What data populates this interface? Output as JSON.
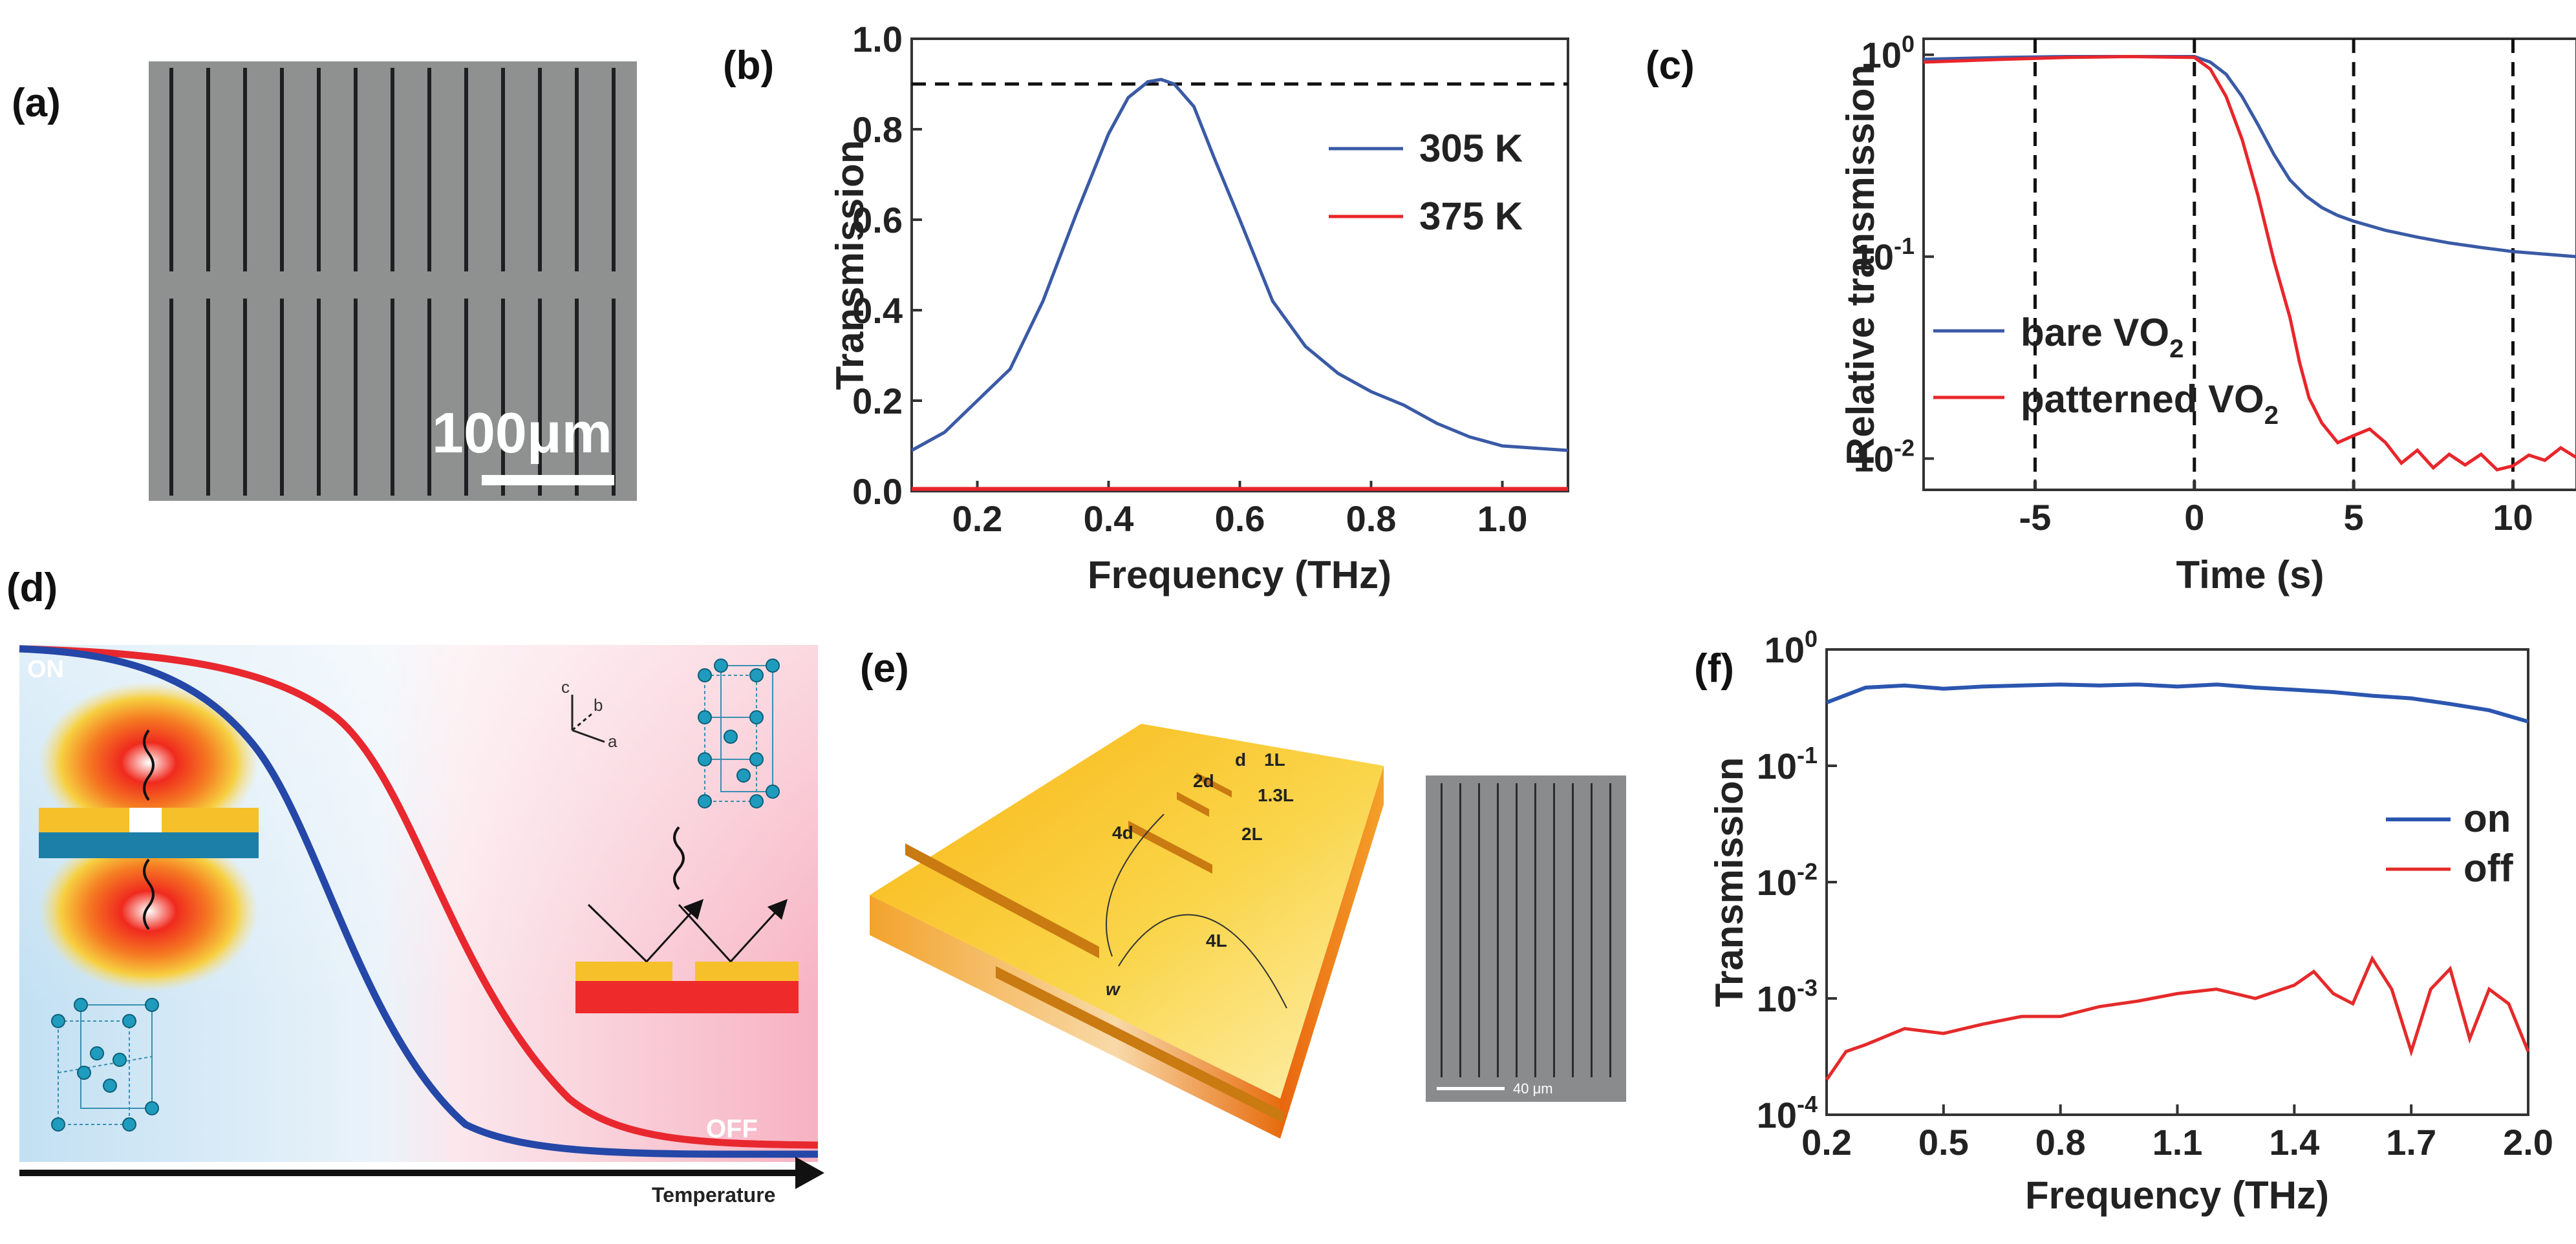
{
  "panel_labels": [
    "(a)",
    "(b)",
    "(c)",
    "(d)",
    "(e)",
    "(f)"
  ],
  "panel_a": {
    "scale_bar": "100μm",
    "colors": {
      "background": "#8f9090",
      "slit": "#1e1f20"
    }
  },
  "chart_data": [
    {
      "id": "b",
      "type": "line",
      "title": "",
      "xlabel": "Frequency (THz)",
      "ylabel": "Transmission",
      "xlim": [
        0.1,
        1.1
      ],
      "ylim": [
        0.0,
        1.0
      ],
      "xticks": [
        0.2,
        0.4,
        0.6,
        0.8,
        1.0
      ],
      "yticks": [
        0.0,
        0.2,
        0.4,
        0.6,
        0.8,
        1.0
      ],
      "tick_labels_x": [
        "0.2",
        "0.4",
        "0.6",
        "0.8",
        "1.0"
      ],
      "tick_labels_y": [
        "0.0",
        "0.2",
        "0.4",
        "0.6",
        "0.8",
        "1.0"
      ],
      "reference_line": {
        "y": 0.9,
        "style": "dashed"
      },
      "legend_position": "right",
      "series": [
        {
          "name": "305 K",
          "color": "#3a5aa6",
          "x": [
            0.1,
            0.15,
            0.2,
            0.25,
            0.3,
            0.35,
            0.4,
            0.43,
            0.46,
            0.48,
            0.5,
            0.53,
            0.56,
            0.6,
            0.65,
            0.7,
            0.75,
            0.8,
            0.85,
            0.9,
            0.95,
            1.0,
            1.05,
            1.1
          ],
          "y": [
            0.09,
            0.13,
            0.2,
            0.27,
            0.42,
            0.61,
            0.79,
            0.87,
            0.905,
            0.91,
            0.9,
            0.85,
            0.74,
            0.6,
            0.42,
            0.32,
            0.26,
            0.22,
            0.19,
            0.15,
            0.12,
            0.1,
            0.095,
            0.09
          ]
        },
        {
          "name": "375 K",
          "color": "#e8262b",
          "x": [
            0.1,
            0.6,
            1.1
          ],
          "y": [
            0.005,
            0.005,
            0.005
          ]
        }
      ]
    },
    {
      "id": "c",
      "type": "line",
      "title": "",
      "xlabel": "Time (s)",
      "ylabel": "Relative transmission",
      "xlim": [
        -8.5,
        12
      ],
      "ylim": [
        0.007,
        1.2
      ],
      "yscale": "log",
      "xticks": [
        -5,
        0,
        5,
        10
      ],
      "tick_labels_x": [
        "-5",
        "0",
        "5",
        "10"
      ],
      "yticks": [
        0.01,
        0.1,
        1
      ],
      "tick_labels_y": [
        {
          "base": "10",
          "exp": "-2"
        },
        {
          "base": "10",
          "exp": "-1"
        },
        {
          "base": "10",
          "exp": "0"
        }
      ],
      "vertical_dashed_lines": [
        -5,
        0,
        5,
        10
      ],
      "legend_position": "bottom-left",
      "series": [
        {
          "name": "bare VO",
          "subscript": "2",
          "color": "#3a5aa6",
          "x": [
            -8.5,
            -6,
            -4,
            -2,
            0,
            0.5,
            1,
            1.5,
            2,
            2.5,
            3,
            3.5,
            4,
            4.5,
            5,
            6,
            7,
            8,
            9,
            10,
            11,
            12
          ],
          "y": [
            0.95,
            0.97,
            0.98,
            0.98,
            0.98,
            0.92,
            0.8,
            0.62,
            0.45,
            0.32,
            0.24,
            0.2,
            0.175,
            0.16,
            0.15,
            0.135,
            0.125,
            0.117,
            0.111,
            0.106,
            0.103,
            0.1
          ]
        },
        {
          "name": "patterned VO",
          "subscript": "2",
          "color": "#e8262b",
          "x": [
            -8.5,
            -6,
            -4,
            -2,
            0,
            0.5,
            1,
            1.5,
            2,
            2.5,
            3,
            3.3,
            3.6,
            4,
            4.5,
            5,
            5.5,
            6,
            6.5,
            7,
            7.5,
            8,
            8.5,
            9,
            9.5,
            10,
            10.5,
            11,
            11.5,
            12
          ],
          "y": [
            0.92,
            0.95,
            0.97,
            0.98,
            0.97,
            0.85,
            0.62,
            0.38,
            0.2,
            0.095,
            0.05,
            0.03,
            0.02,
            0.015,
            0.012,
            0.013,
            0.014,
            0.012,
            0.0095,
            0.011,
            0.009,
            0.0105,
            0.0093,
            0.0105,
            0.0088,
            0.0092,
            0.0104,
            0.0098,
            0.0113,
            0.0101
          ]
        }
      ]
    },
    {
      "id": "f",
      "type": "line",
      "title": "",
      "xlabel": "Frequency (THz)",
      "ylabel": "Transmission",
      "xlim": [
        0.2,
        2.0
      ],
      "ylim": [
        0.0001,
        1
      ],
      "yscale": "log",
      "xticks": [
        0.2,
        0.5,
        0.8,
        1.1,
        1.4,
        1.7,
        2.0
      ],
      "tick_labels_x": [
        "0.2",
        "0.5",
        "0.8",
        "1.1",
        "1.4",
        "1.7",
        "2.0"
      ],
      "yticks": [
        0.0001,
        0.001,
        0.01,
        0.1,
        1
      ],
      "tick_labels_y": [
        {
          "base": "10",
          "exp": "-4"
        },
        {
          "base": "10",
          "exp": "-3"
        },
        {
          "base": "10",
          "exp": "-2"
        },
        {
          "base": "10",
          "exp": "-1"
        },
        {
          "base": "10",
          "exp": "0"
        }
      ],
      "legend_position": "right",
      "series": [
        {
          "name": "on",
          "color": "#2b56b0",
          "x": [
            0.2,
            0.3,
            0.4,
            0.5,
            0.6,
            0.7,
            0.8,
            0.9,
            1.0,
            1.1,
            1.2,
            1.3,
            1.4,
            1.5,
            1.6,
            1.7,
            1.8,
            1.9,
            2.0
          ],
          "y": [
            0.35,
            0.47,
            0.49,
            0.46,
            0.48,
            0.49,
            0.5,
            0.49,
            0.5,
            0.48,
            0.5,
            0.47,
            0.45,
            0.43,
            0.4,
            0.38,
            0.34,
            0.3,
            0.24
          ]
        },
        {
          "name": "off",
          "color": "#e52a2a",
          "x": [
            0.2,
            0.25,
            0.3,
            0.4,
            0.5,
            0.6,
            0.7,
            0.8,
            0.9,
            1.0,
            1.1,
            1.2,
            1.3,
            1.4,
            1.45,
            1.5,
            1.55,
            1.6,
            1.65,
            1.7,
            1.75,
            1.8,
            1.85,
            1.9,
            1.95,
            2.0
          ],
          "y": [
            0.0002,
            0.00035,
            0.0004,
            0.00055,
            0.0005,
            0.0006,
            0.0007,
            0.0007,
            0.00085,
            0.00095,
            0.0011,
            0.0012,
            0.001,
            0.0013,
            0.0017,
            0.0011,
            0.0009,
            0.0022,
            0.0012,
            0.00035,
            0.0012,
            0.0018,
            0.00045,
            0.0012,
            0.0009,
            0.00035
          ]
        }
      ]
    }
  ],
  "panel_d": {
    "on_label": "ON",
    "off_label": "OFF",
    "axis_label": "Temperature",
    "lattice_axes": [
      "c",
      "b",
      "a"
    ],
    "colors": {
      "blue_curve": "#2447a8",
      "red_curve": "#e8282e",
      "bg_left": "#c4e1f2",
      "bg_right": "#fbd4dc"
    }
  },
  "panel_e": {
    "dimension_labels": [
      "d",
      "1L",
      "2d",
      "1.3L",
      "4d",
      "2L",
      "4L",
      "w"
    ],
    "inset_scale_bar": "40 μm",
    "colors": {
      "gold_top": "#f7c21c",
      "gold_edge": "#e66a12"
    }
  }
}
